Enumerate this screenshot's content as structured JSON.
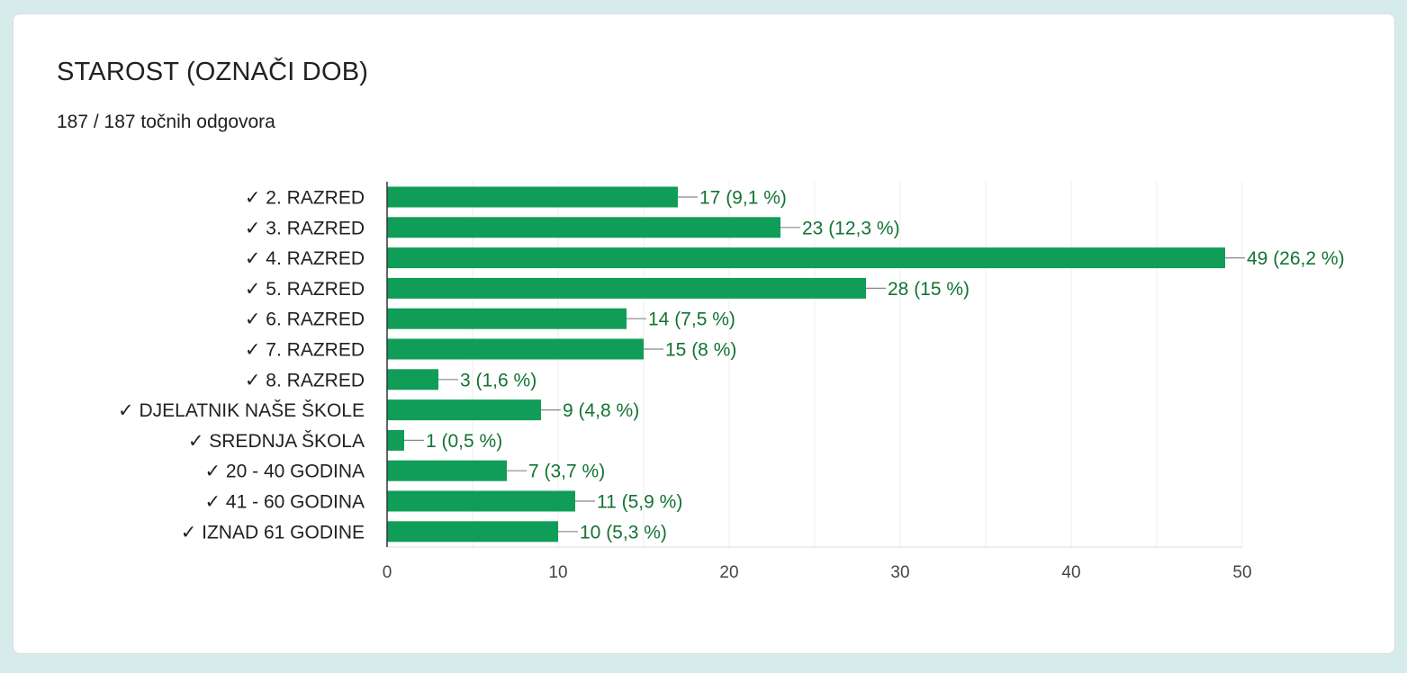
{
  "card": {
    "title": "STAROST (OZNAČI DOB)",
    "subtitle": "187 / 187 točnih odgovora"
  },
  "colors": {
    "bar": "#0f9d58",
    "value_label": "#137333",
    "grid": "#eeeeee",
    "axis": "#333333"
  },
  "chart_data": {
    "type": "bar",
    "orientation": "horizontal",
    "categories": [
      "✓ 2. RAZRED",
      "✓ 3. RAZRED",
      "✓ 4. RAZRED",
      "✓ 5. RAZRED",
      "✓ 6. RAZRED",
      "✓ 7. RAZRED",
      "✓ 8. RAZRED",
      "✓ DJELATNIK NAŠE ŠKOLE",
      "✓ SREDNJA ŠKOLA",
      "✓ 20 - 40 GODINA",
      "✓ 41 - 60 GODINA",
      "✓ IZNAD 61 GODINE"
    ],
    "values": [
      17,
      23,
      49,
      28,
      14,
      15,
      3,
      9,
      1,
      7,
      11,
      10
    ],
    "data_labels": [
      "17 (9,1 %)",
      "23 (12,3 %)",
      "49 (26,2 %)",
      "28 (15 %)",
      "14 (7,5 %)",
      "15 (8 %)",
      "3 (1,6 %)",
      "9 (4,8 %)",
      "1 (0,5 %)",
      "7 (3,7 %)",
      "11 (5,9 %)",
      "10 (5,3 %)"
    ],
    "xlim": [
      0,
      50
    ],
    "x_ticks": [
      "0",
      "10",
      "20",
      "30",
      "40",
      "50"
    ],
    "grid": true
  }
}
